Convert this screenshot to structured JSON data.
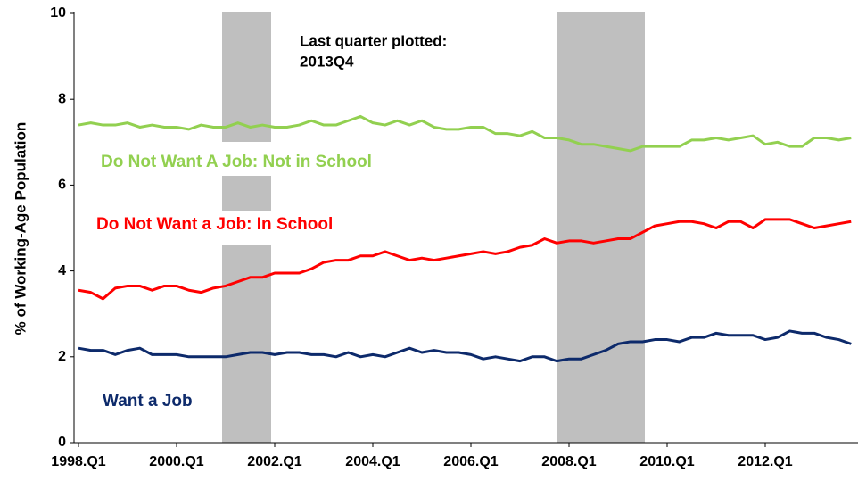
{
  "chart_data": {
    "type": "line",
    "y_label": "% of Working-Age Population",
    "annotation": [
      "Last quarter plotted:",
      "2013Q4"
    ],
    "categories": [
      "1998.Q1",
      null,
      null,
      null,
      null,
      null,
      null,
      null,
      "2000.Q1",
      null,
      null,
      null,
      null,
      null,
      null,
      null,
      "2002.Q1",
      null,
      null,
      null,
      null,
      null,
      null,
      null,
      "2004.Q1",
      null,
      null,
      null,
      null,
      null,
      null,
      null,
      "2006.Q1",
      null,
      null,
      null,
      null,
      null,
      null,
      null,
      "2008.Q1",
      null,
      null,
      null,
      null,
      null,
      null,
      null,
      "2010.Q1",
      null,
      null,
      null,
      null,
      null,
      null,
      null,
      "2012.Q1",
      null,
      null,
      null,
      null,
      null,
      null,
      null
    ],
    "ylim": [
      0,
      10
    ],
    "yticks": [
      0,
      2,
      4,
      6,
      8,
      10
    ],
    "grid": false,
    "series": [
      {
        "name": "Do Not Want A Job: Not in School",
        "color": "#92d050",
        "values": [
          7.4,
          7.45,
          7.4,
          7.4,
          7.45,
          7.35,
          7.4,
          7.35,
          7.35,
          7.3,
          7.4,
          7.35,
          7.35,
          7.45,
          7.35,
          7.4,
          7.35,
          7.35,
          7.4,
          7.5,
          7.4,
          7.4,
          7.5,
          7.6,
          7.45,
          7.4,
          7.5,
          7.4,
          7.5,
          7.35,
          7.3,
          7.3,
          7.35,
          7.35,
          7.2,
          7.2,
          7.15,
          7.25,
          7.1,
          7.1,
          7.05,
          6.95,
          6.95,
          6.9,
          6.85,
          6.8,
          6.9,
          6.9,
          6.9,
          6.9,
          7.05,
          7.05,
          7.1,
          7.05,
          7.1,
          7.15,
          6.95,
          7.0,
          6.9,
          6.9,
          7.1,
          7.1,
          7.05,
          7.1
        ]
      },
      {
        "name": "Do Not Want a Job: In School",
        "color": "#ff0000",
        "values": [
          3.55,
          3.5,
          3.35,
          3.6,
          3.65,
          3.65,
          3.55,
          3.65,
          3.65,
          3.55,
          3.5,
          3.6,
          3.65,
          3.75,
          3.85,
          3.85,
          3.95,
          3.95,
          3.95,
          4.05,
          4.2,
          4.25,
          4.25,
          4.35,
          4.35,
          4.45,
          4.35,
          4.25,
          4.3,
          4.25,
          4.3,
          4.35,
          4.4,
          4.45,
          4.4,
          4.45,
          4.55,
          4.6,
          4.75,
          4.65,
          4.7,
          4.7,
          4.65,
          4.7,
          4.75,
          4.75,
          4.9,
          5.05,
          5.1,
          5.15,
          5.15,
          5.1,
          5.0,
          5.15,
          5.15,
          5.0,
          5.2,
          5.2,
          5.2,
          5.1,
          5.0,
          5.05,
          5.1,
          5.15
        ]
      },
      {
        "name": "Want a Job",
        "color": "#0d2a6b",
        "values": [
          2.2,
          2.15,
          2.15,
          2.05,
          2.15,
          2.2,
          2.05,
          2.05,
          2.05,
          2.0,
          2.0,
          2.0,
          2.0,
          2.05,
          2.1,
          2.1,
          2.05,
          2.1,
          2.1,
          2.05,
          2.05,
          2.0,
          2.1,
          2.0,
          2.05,
          2.0,
          2.1,
          2.2,
          2.1,
          2.15,
          2.1,
          2.1,
          2.05,
          1.95,
          2.0,
          1.95,
          1.9,
          2.0,
          2.0,
          1.9,
          1.95,
          1.95,
          2.05,
          2.15,
          2.3,
          2.35,
          2.35,
          2.4,
          2.4,
          2.35,
          2.45,
          2.45,
          2.55,
          2.5,
          2.5,
          2.5,
          2.4,
          2.45,
          2.6,
          2.55,
          2.55,
          2.45,
          2.4,
          2.3
        ]
      }
    ]
  }
}
